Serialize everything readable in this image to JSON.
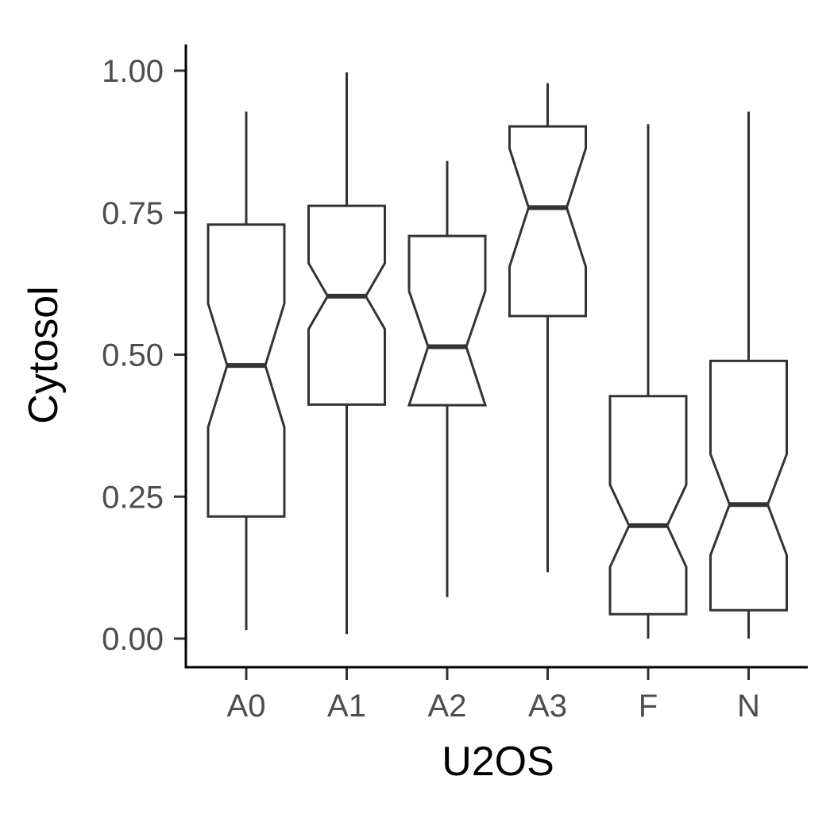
{
  "chart_data": {
    "type": "boxplot",
    "notched": true,
    "xlabel": "U2OS",
    "ylabel": "Cytosol",
    "categories": [
      "A0",
      "A1",
      "A2",
      "A3",
      "F",
      "N"
    ],
    "ylim": [
      0,
      1
    ],
    "yticks": [
      0,
      0.25,
      0.5,
      0.75,
      1
    ],
    "ytick_labels": [
      "0.00",
      "0.25",
      "0.50",
      "0.75",
      "1.00"
    ],
    "grid": false,
    "legend": "none",
    "boxes": [
      {
        "category": "A0",
        "whisker_low": 0.015,
        "q1": 0.215,
        "median": 0.481,
        "q3": 0.729,
        "whisker_high": 0.928,
        "notch_low": 0.372,
        "notch_high": 0.59
      },
      {
        "category": "A1",
        "whisker_low": 0.008,
        "q1": 0.412,
        "median": 0.603,
        "q3": 0.762,
        "whisker_high": 0.997,
        "notch_low": 0.545,
        "notch_high": 0.661
      },
      {
        "category": "A2",
        "whisker_low": 0.073,
        "q1": 0.411,
        "median": 0.514,
        "q3": 0.709,
        "whisker_high": 0.841,
        "notch_low": 0.411,
        "notch_high": 0.612
      },
      {
        "category": "A3",
        "whisker_low": 0.117,
        "q1": 0.568,
        "median": 0.759,
        "q3": 0.902,
        "whisker_high": 0.978,
        "notch_low": 0.655,
        "notch_high": 0.863
      },
      {
        "category": "F",
        "whisker_low": 0.0,
        "q1": 0.043,
        "median": 0.199,
        "q3": 0.427,
        "whisker_high": 0.906,
        "notch_low": 0.126,
        "notch_high": 0.271
      },
      {
        "category": "N",
        "whisker_low": 0.0,
        "q1": 0.05,
        "median": 0.236,
        "q3": 0.489,
        "whisker_high": 0.928,
        "notch_low": 0.147,
        "notch_high": 0.325
      }
    ]
  }
}
